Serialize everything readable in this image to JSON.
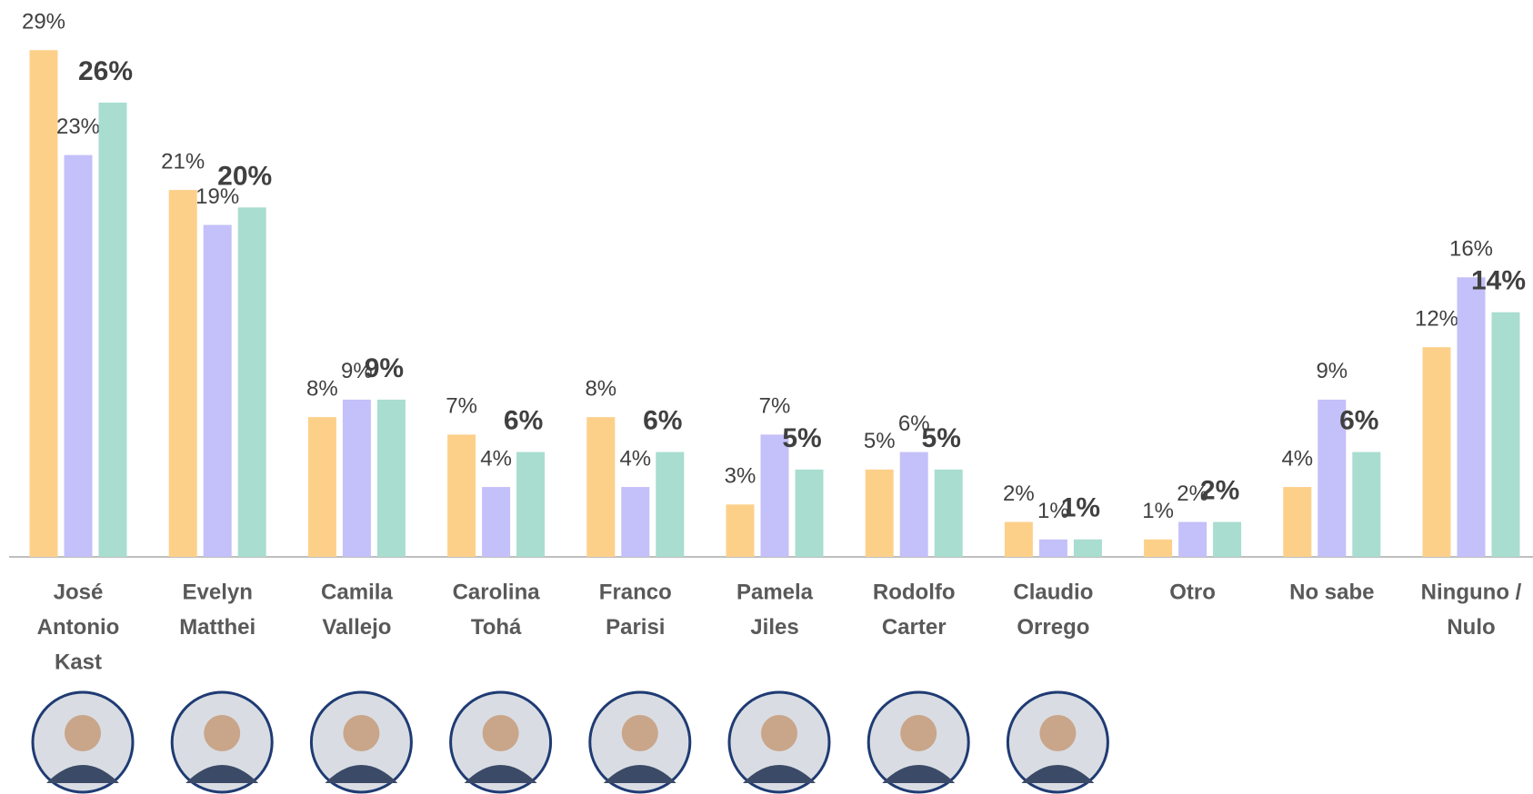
{
  "chart_data": {
    "type": "bar",
    "categories": [
      [
        "José",
        "Antonio",
        "Kast"
      ],
      [
        "Evelyn",
        "Matthei"
      ],
      [
        "Camila",
        "Vallejo"
      ],
      [
        "Carolina",
        "Tohá"
      ],
      [
        "Franco",
        "Parisi"
      ],
      [
        "Pamela",
        "Jiles"
      ],
      [
        "Rodolfo",
        "Carter"
      ],
      [
        "Claudio",
        "Orrego"
      ],
      [
        "Otro"
      ],
      [
        "No sabe"
      ],
      [
        "Ninguno /",
        "Nulo"
      ]
    ],
    "series": [
      {
        "color": "#fdd08a",
        "values": [
          29,
          21,
          8,
          7,
          8,
          3,
          5,
          2,
          1,
          4,
          12
        ],
        "value_labels": [
          "29%",
          "21%",
          "8%",
          "7%",
          "8%",
          "3%",
          "5%",
          "2%",
          "1%",
          "4%",
          "12%"
        ]
      },
      {
        "color": "#c4c0f9",
        "values": [
          23,
          19,
          9,
          4,
          4,
          7,
          6,
          1,
          2,
          9,
          16
        ],
        "value_labels": [
          "23%",
          "19%",
          "9%",
          "4%",
          "4%",
          "7%",
          "6%",
          "1%",
          "2%",
          "9%",
          "16%"
        ]
      },
      {
        "color": "#a8ddd0",
        "values": [
          26,
          20,
          9,
          6,
          6,
          5,
          5,
          1,
          2,
          6,
          14
        ],
        "value_labels": [
          "26%",
          "20%",
          "9%",
          "6%",
          "6%",
          "5%",
          "5%",
          "1%",
          "2%",
          "6%",
          "14%"
        ]
      }
    ],
    "ylim": [
      0,
      30
    ]
  }
}
